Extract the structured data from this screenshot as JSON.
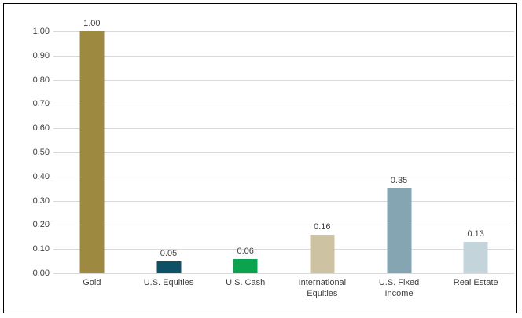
{
  "chart_data": {
    "type": "bar",
    "title": "",
    "xlabel": "",
    "ylabel": "",
    "categories": [
      "Gold",
      "U.S. Equities",
      "U.S. Cash",
      "International Equities",
      "U.S. Fixed Income",
      "Real Estate"
    ],
    "values": [
      1.0,
      0.05,
      0.06,
      0.16,
      0.35,
      0.13
    ],
    "value_labels": [
      "1.00",
      "0.05",
      "0.06",
      "0.16",
      "0.35",
      "0.13"
    ],
    "bar_colors": [
      "#9D8940",
      "#0E5066",
      "#0BA34D",
      "#CDC2A1",
      "#85A5B3",
      "#C3D4DA"
    ],
    "ylim": [
      0,
      1.0
    ],
    "ytick_step": 0.1,
    "ytick_labels": [
      "0.00",
      "0.10",
      "0.20",
      "0.30",
      "0.40",
      "0.50",
      "0.60",
      "0.70",
      "0.80",
      "0.90",
      "1.00"
    ],
    "grid": true,
    "legend": "none"
  },
  "style": {
    "gridline_color": "#D9D9D9",
    "text_color": "#404040",
    "frame_border_color": "#000000",
    "background_color": "#FFFFFF"
  }
}
